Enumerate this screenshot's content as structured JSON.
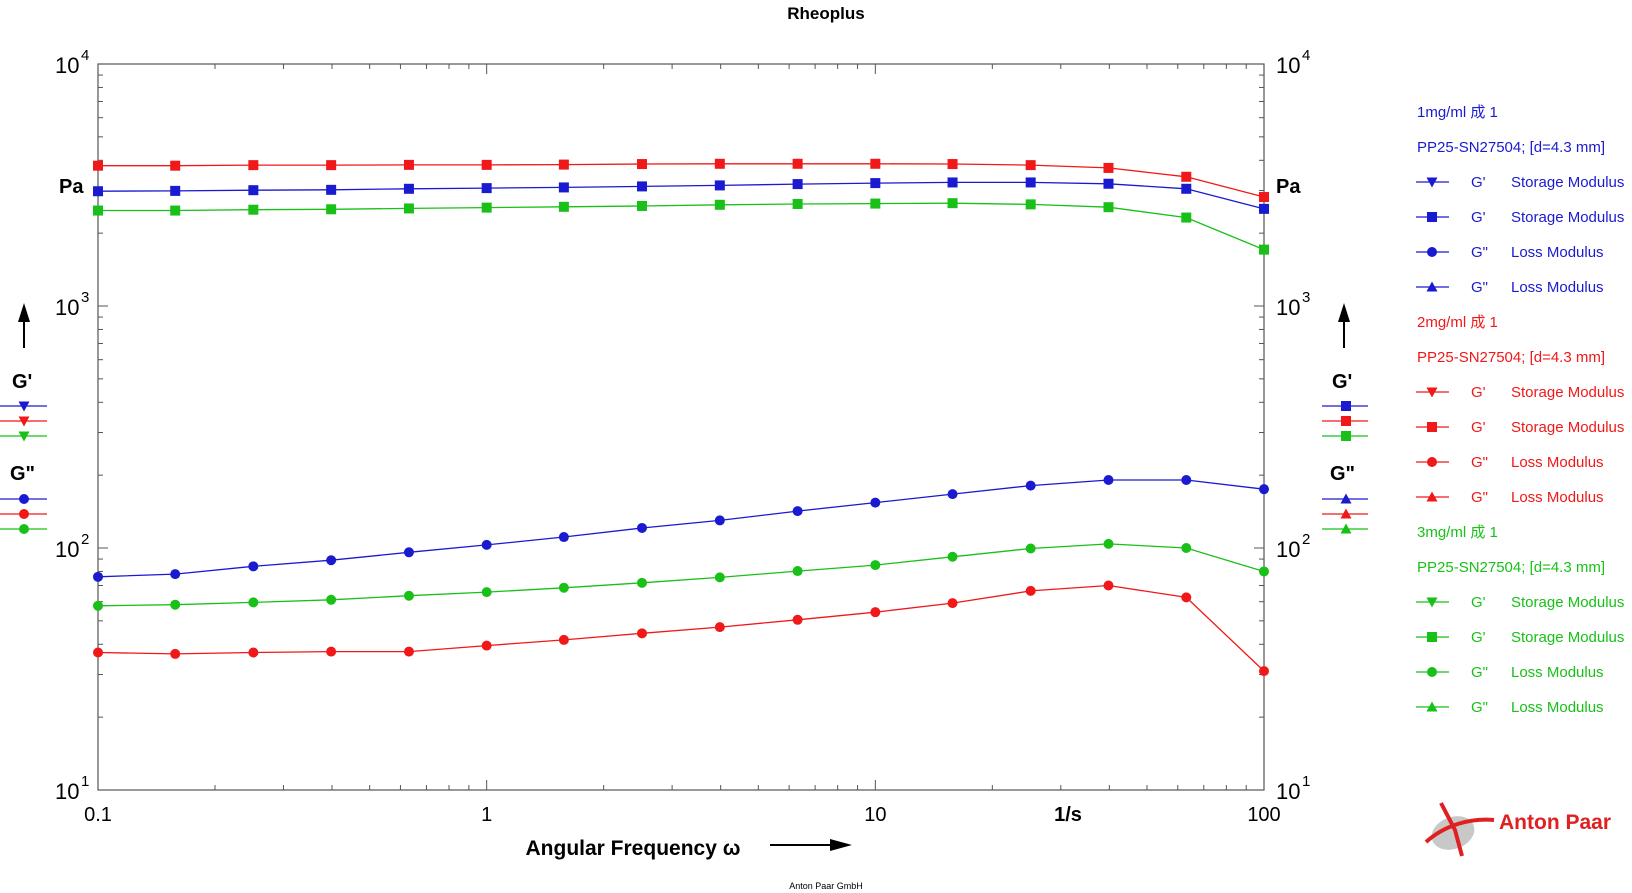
{
  "chart_data": {
    "type": "line",
    "title": "Rheoplus",
    "xlabel": "Angular Frequency ω",
    "x_unit": "1/s",
    "y_unit": "Pa",
    "x_scale": "log",
    "y_scale": "log",
    "xlim": [
      0.1,
      100
    ],
    "ylim": [
      10,
      10000
    ],
    "x_ticks": [
      "0.1",
      "1",
      "10",
      "100"
    ],
    "y_ticks": [
      {
        "base": "10",
        "exp": "1"
      },
      {
        "base": "10",
        "exp": "2"
      },
      {
        "base": "10",
        "exp": "3"
      },
      {
        "base": "10",
        "exp": "4"
      }
    ],
    "left_axis_labels": [
      "G'",
      "G\""
    ],
    "right_axis_labels": [
      "G'",
      "G\""
    ],
    "grid": false,
    "legend_position": "right",
    "x": [
      0.1,
      0.158,
      0.251,
      0.398,
      0.631,
      1,
      1.58,
      2.51,
      3.98,
      6.31,
      10,
      15.8,
      25.1,
      39.8,
      63.1,
      100
    ],
    "groups": [
      {
        "name": "1mg/ml 成 1",
        "geometry": "PP25-SN27504; [d=4.3 mm]",
        "color": "#1a1ad0",
        "entries": [
          {
            "symbol": "triangle-down",
            "quantity": "G'",
            "label": "Storage Modulus"
          },
          {
            "symbol": "square",
            "quantity": "G'",
            "label": "Storage Modulus"
          },
          {
            "symbol": "circle",
            "quantity": "G\"",
            "label": "Loss Modulus"
          },
          {
            "symbol": "triangle-up",
            "quantity": "G\"",
            "label": "Loss Modulus"
          }
        ]
      },
      {
        "name": "2mg/ml 成 1",
        "geometry": "PP25-SN27504; [d=4.3 mm]",
        "color": "#f01818",
        "entries": [
          {
            "symbol": "triangle-down",
            "quantity": "G'",
            "label": "Storage Modulus"
          },
          {
            "symbol": "square",
            "quantity": "G'",
            "label": "Storage Modulus"
          },
          {
            "symbol": "circle",
            "quantity": "G\"",
            "label": "Loss Modulus"
          },
          {
            "symbol": "triangle-up",
            "quantity": "G\"",
            "label": "Loss Modulus"
          }
        ]
      },
      {
        "name": "3mg/ml 成 1",
        "geometry": "PP25-SN27504; [d=4.3 mm]",
        "color": "#18c018",
        "entries": [
          {
            "symbol": "triangle-down",
            "quantity": "G'",
            "label": "Storage Modulus"
          },
          {
            "symbol": "square",
            "quantity": "G'",
            "label": "Storage Modulus"
          },
          {
            "symbol": "circle",
            "quantity": "G\"",
            "label": "Loss Modulus"
          },
          {
            "symbol": "triangle-up",
            "quantity": "G\"",
            "label": "Loss Modulus"
          }
        ]
      }
    ],
    "series": [
      {
        "group": 0,
        "quantity": "G'",
        "marker": "square",
        "color": "#1a1ad0",
        "values": [
          2980,
          2990,
          3010,
          3020,
          3050,
          3070,
          3090,
          3120,
          3150,
          3190,
          3220,
          3240,
          3240,
          3200,
          3050,
          2520
        ]
      },
      {
        "group": 1,
        "quantity": "G'",
        "marker": "square",
        "color": "#f01818",
        "values": [
          3800,
          3800,
          3820,
          3820,
          3830,
          3830,
          3840,
          3860,
          3870,
          3870,
          3870,
          3860,
          3820,
          3720,
          3420,
          2820
        ]
      },
      {
        "group": 2,
        "quantity": "G'",
        "marker": "square",
        "color": "#18c018",
        "values": [
          2480,
          2480,
          2500,
          2510,
          2530,
          2550,
          2570,
          2590,
          2620,
          2640,
          2650,
          2660,
          2630,
          2560,
          2320,
          1710
        ]
      },
      {
        "group": 0,
        "quantity": "G\"",
        "marker": "circle",
        "color": "#1a1ad0",
        "values": [
          76,
          78,
          84,
          89,
          96,
          103,
          111,
          121,
          130,
          142,
          154,
          167,
          181,
          191,
          191,
          175
        ]
      },
      {
        "group": 1,
        "quantity": "G\"",
        "marker": "circle",
        "color": "#f01818",
        "values": [
          37,
          36.5,
          37,
          37.3,
          37.3,
          39.5,
          41.7,
          44.4,
          47.1,
          50.5,
          54.3,
          59.2,
          66.5,
          70,
          62.5,
          31
        ]
      },
      {
        "group": 2,
        "quantity": "G\"",
        "marker": "circle",
        "color": "#18c018",
        "values": [
          57.7,
          58.3,
          59.6,
          61.1,
          63.5,
          65.7,
          68.5,
          71.8,
          75.6,
          80.3,
          85,
          92,
          99.5,
          104,
          100,
          80
        ]
      }
    ],
    "footer": "Anton Paar GmbH",
    "brand": "Anton Paar"
  }
}
